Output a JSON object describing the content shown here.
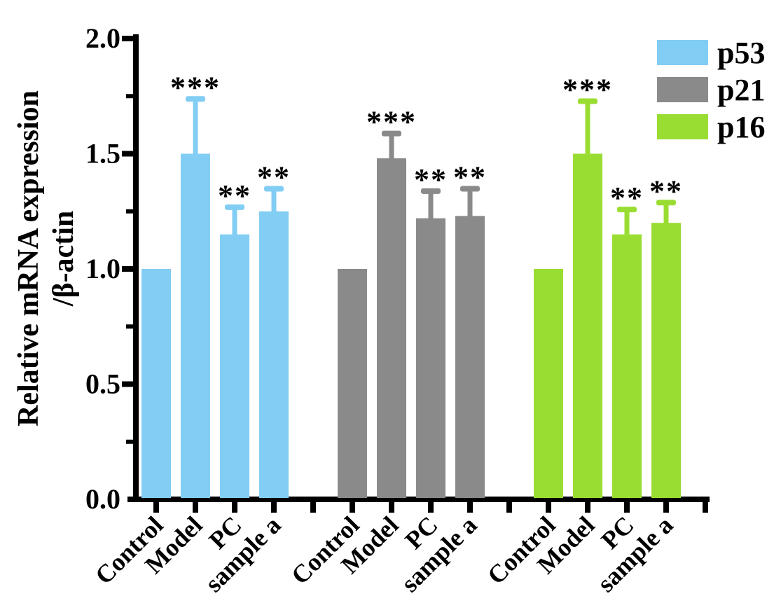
{
  "figure": {
    "background": "#ffffff",
    "axis_color": "#000000",
    "text_color": "#000000"
  },
  "chart_data": {
    "type": "bar",
    "title": "",
    "xlabel": "",
    "ylabel": "Relative mRNA expression /β-actin",
    "ylabel_lines": [
      "Relative mRNA expression",
      "/β-actin"
    ],
    "ylim": [
      0.0,
      2.0
    ],
    "ytick_labels": [
      "0.0",
      "0.5",
      "1.0",
      "1.5",
      "2.0"
    ],
    "minor_ytick_values": [
      0.25,
      0.75,
      1.25,
      1.75
    ],
    "grid": false,
    "categories": [
      "Control",
      "Model",
      "PC",
      "sample a"
    ],
    "series": [
      {
        "name": "p53",
        "color": "#82CDF4",
        "values": [
          1.0,
          1.5,
          1.15,
          1.25
        ],
        "errors": [
          0,
          0.25,
          0.13,
          0.11
        ],
        "significance": [
          "",
          "***",
          "**",
          "**"
        ]
      },
      {
        "name": "p21",
        "color": "#8A8A8A",
        "values": [
          1.0,
          1.48,
          1.22,
          1.23
        ],
        "errors": [
          0,
          0.12,
          0.13,
          0.13
        ],
        "significance": [
          "",
          "***",
          "**",
          "**"
        ]
      },
      {
        "name": "p16",
        "color": "#9ADD32",
        "values": [
          1.0,
          1.5,
          1.15,
          1.2
        ],
        "errors": [
          0,
          0.24,
          0.12,
          0.1
        ],
        "significance": [
          "",
          "***",
          "**",
          "**"
        ]
      }
    ],
    "legend": {
      "position": "top-right",
      "entries": [
        "p53",
        "p21",
        "p16"
      ]
    }
  }
}
